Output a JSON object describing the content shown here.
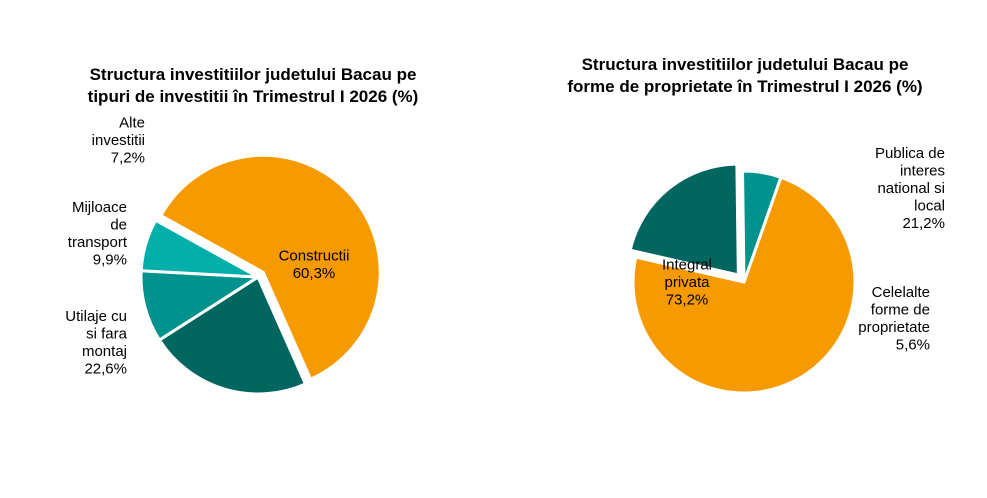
{
  "chart_data": [
    {
      "type": "pie",
      "title_lines": [
        "Structura investitiilor judetului Bacau pe",
        "tipuri de investitii în Trimestrul I 2026 (%)"
      ],
      "slices": [
        {
          "label_lines": [
            "Constructii",
            "60,3%"
          ],
          "value": 60.3,
          "color": "#F79A00"
        },
        {
          "label_lines": [
            "Utilaje  cu",
            "si fara",
            "montaj",
            "22,6%"
          ],
          "value": 22.6,
          "color": "#00665F"
        },
        {
          "label_lines": [
            "Mijloace",
            "de",
            "transport",
            "9,9%"
          ],
          "value": 9.9,
          "color": "#00928C"
        },
        {
          "label_lines": [
            "Alte",
            "investitii",
            "7,2%"
          ],
          "value": 7.2,
          "color": "#00AFAA"
        }
      ],
      "legend": "none"
    },
    {
      "type": "pie",
      "title_lines": [
        "Structura investitiilor judetului Bacau pe",
        "forme de proprietate în Trimestrul I 2026 (%)"
      ],
      "slices": [
        {
          "label_lines": [
            "Integral",
            "privata",
            "73,2%"
          ],
          "value": 73.2,
          "color": "#F79A00"
        },
        {
          "label_lines": [
            "Publica de",
            "interes",
            "national si",
            "local",
            "21,2%"
          ],
          "value": 21.2,
          "color": "#00665F"
        },
        {
          "label_lines": [
            "Celelalte",
            "forme de",
            "proprietate",
            "5,6%"
          ],
          "value": 5.6,
          "color": "#00928C"
        }
      ],
      "legend": "none"
    }
  ]
}
